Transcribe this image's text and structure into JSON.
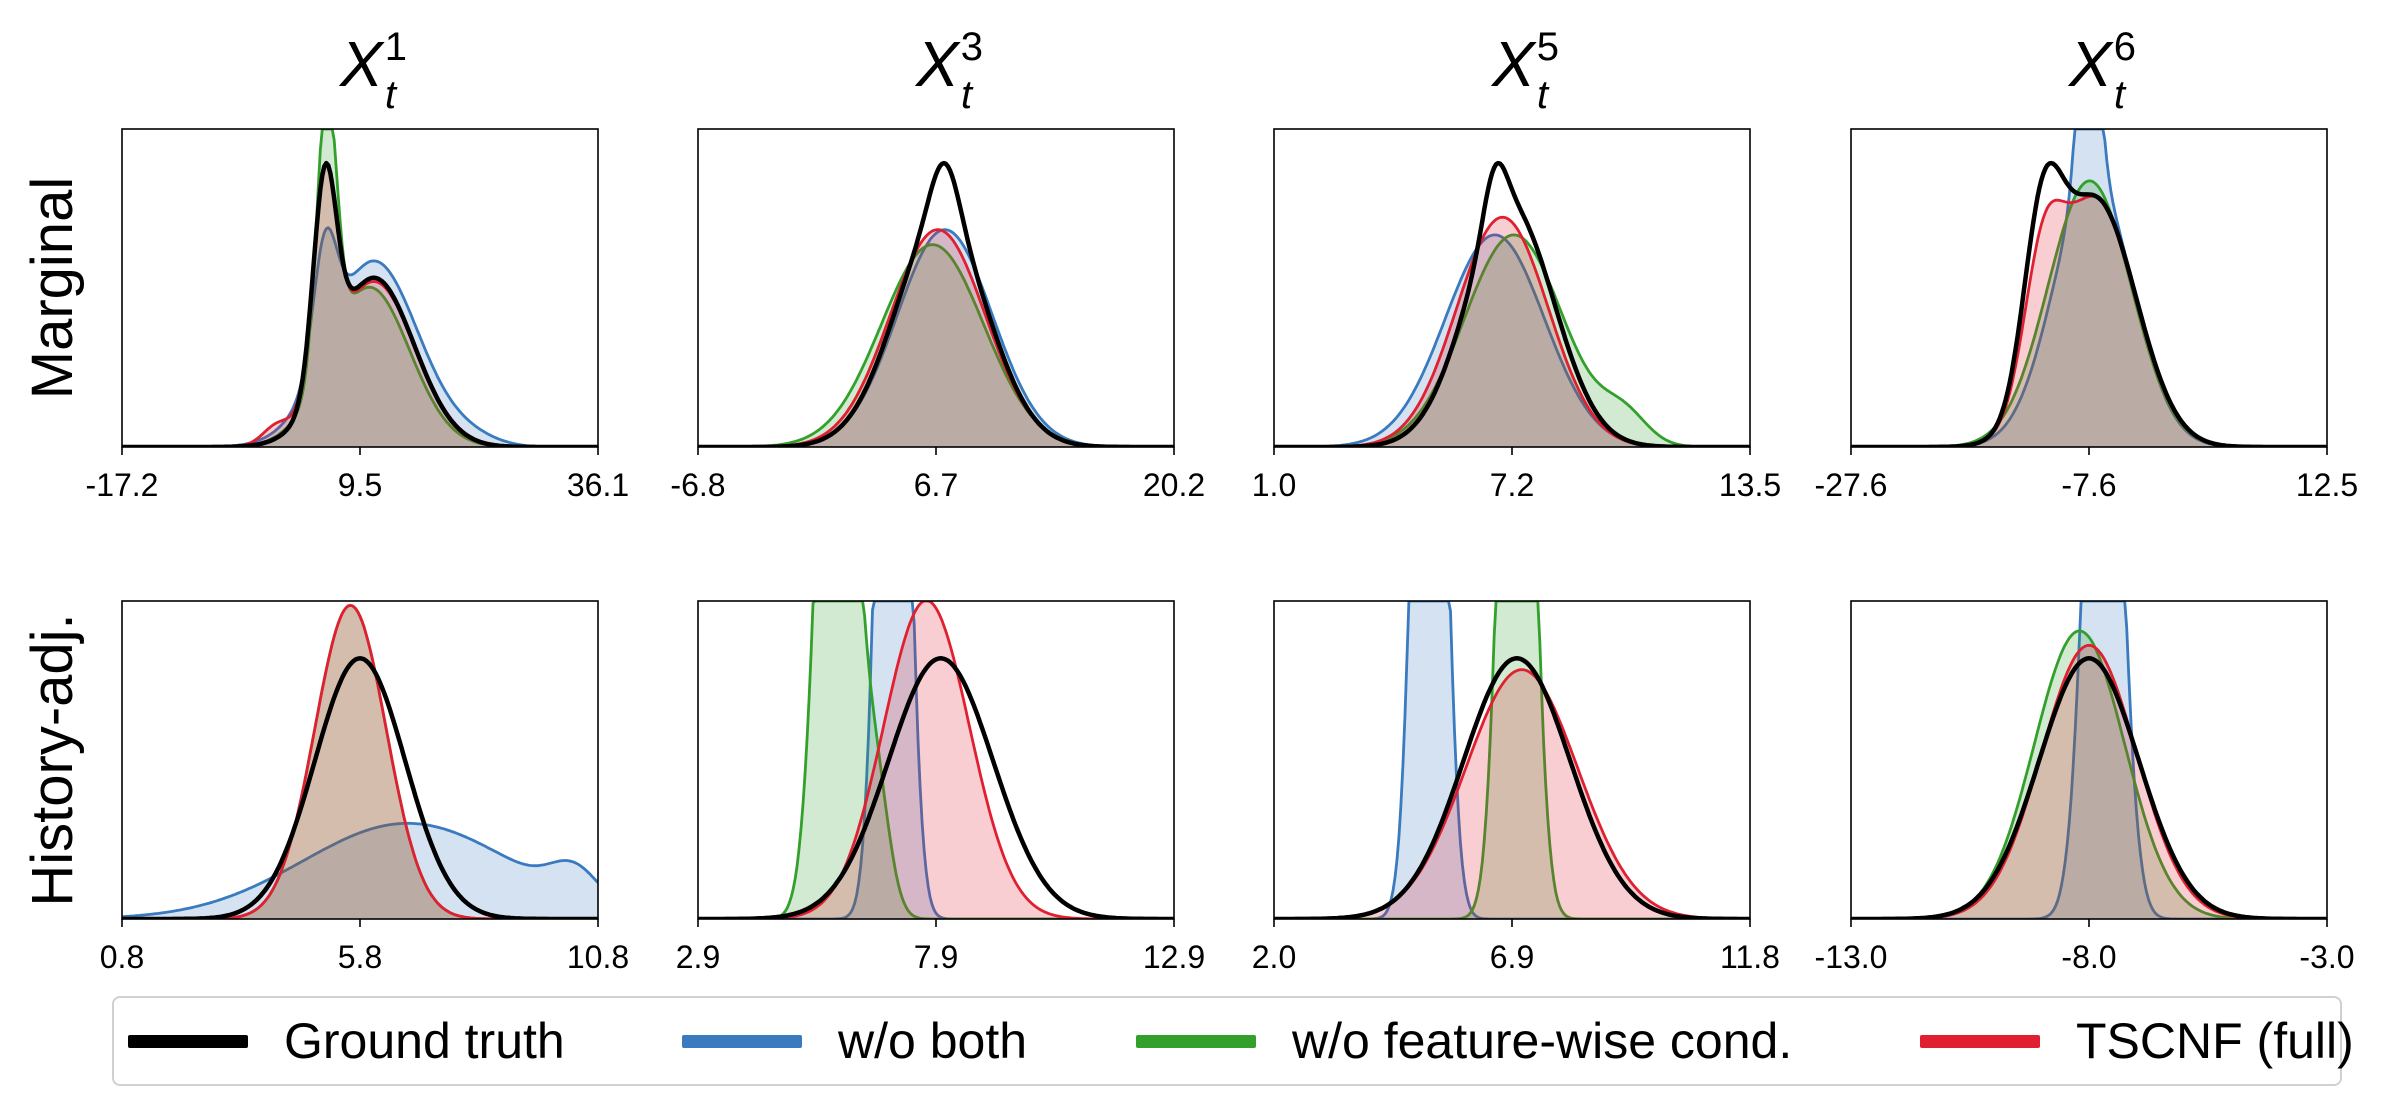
{
  "chart_data": {
    "type": "area",
    "grid": false,
    "legend_placement": "bottom",
    "columns": [
      {
        "var": "X",
        "sup": "1",
        "sub": "t"
      },
      {
        "var": "X",
        "sup": "3",
        "sub": "t"
      },
      {
        "var": "X",
        "sup": "5",
        "sub": "t"
      },
      {
        "var": "X",
        "sup": "6",
        "sub": "t"
      }
    ],
    "rows": [
      "Marginal",
      "History-adj."
    ],
    "series": [
      {
        "key": "gt",
        "name": "Ground truth",
        "color": "#000000",
        "filled": false
      },
      {
        "key": "wob",
        "name": "w/o both",
        "color": "#3a7abf",
        "filled": true
      },
      {
        "key": "wof",
        "name": "w/o feature-wise cond.",
        "color": "#33a02c",
        "filled": true
      },
      {
        "key": "full",
        "name": "TSCNF (full)",
        "color": "#e02030",
        "filled": true
      }
    ],
    "panels": [
      {
        "row": 0,
        "col": 0,
        "xlim": [
          -17.2,
          36.1
        ],
        "xticks": [
          "-17.2",
          "9.5",
          "36.1"
        ],
        "densities": {
          "gt": [
            {
              "m": 5.5,
              "s": 1.3,
              "w": 0.62
            },
            {
              "m": 11,
              "s": 4.5,
              "w": 1.8
            }
          ],
          "wob": [
            {
              "m": 5.5,
              "s": 1.3,
              "w": 0.35
            },
            {
              "m": 11,
              "s": 5,
              "w": 2.2
            },
            {
              "m": 22,
              "s": 3,
              "w": 0.05
            }
          ],
          "wof": [
            {
              "m": 5.7,
              "s": 1.1,
              "w": 0.7
            },
            {
              "m": 10.5,
              "s": 4.5,
              "w": 1.7
            }
          ],
          "full": [
            {
              "m": 5.5,
              "s": 1.3,
              "w": 0.62
            },
            {
              "m": 11,
              "s": 4.6,
              "w": 1.8
            },
            {
              "m": 0,
              "s": 1.5,
              "w": 0.05
            }
          ]
        }
      },
      {
        "row": 0,
        "col": 1,
        "xlim": [
          -6.8,
          20.2
        ],
        "xticks": [
          "-6.8",
          "6.7",
          "20.2"
        ],
        "densities": {
          "gt": [
            {
              "m": 7,
              "s": 2.6,
              "w": 1.0
            },
            {
              "m": 7.2,
              "s": 0.8,
              "w": 0.08
            }
          ],
          "wob": [
            {
              "m": 7.2,
              "s": 2.7,
              "w": 1.0
            }
          ],
          "wof": [
            {
              "m": 6.5,
              "s": 2.9,
              "w": 1.0
            }
          ],
          "full": [
            {
              "m": 6.8,
              "s": 2.7,
              "w": 1.0
            }
          ]
        }
      },
      {
        "row": 0,
        "col": 2,
        "xlim": [
          1.0,
          13.5
        ],
        "xticks": [
          "1.0",
          "7.2",
          "13.5"
        ],
        "densities": {
          "gt": [
            {
              "m": 7.2,
              "s": 1.15,
              "w": 1.0
            },
            {
              "m": 6.8,
              "s": 0.3,
              "w": 0.06
            }
          ],
          "wob": [
            {
              "m": 6.8,
              "s": 1.3,
              "w": 1.0
            }
          ],
          "wof": [
            {
              "m": 7.3,
              "s": 1.3,
              "w": 1.0
            },
            {
              "m": 10.2,
              "s": 0.6,
              "w": 0.06
            }
          ],
          "full": [
            {
              "m": 7.0,
              "s": 1.2,
              "w": 1.0
            }
          ]
        }
      },
      {
        "row": 0,
        "col": 3,
        "xlim": [
          -27.6,
          12.5
        ],
        "xticks": [
          "-27.6",
          "-7.6",
          "12.5"
        ],
        "densities": {
          "gt": [
            {
              "m": -11.5,
              "s": 1.6,
              "w": 0.3
            },
            {
              "m": -7.0,
              "s": 3.4,
              "w": 0.95
            }
          ],
          "wob": [
            {
              "m": -7.2,
              "s": 3.3,
              "w": 1.0
            },
            {
              "m": -7.6,
              "s": 0.8,
              "w": 0.2
            }
          ],
          "wof": [
            {
              "m": -7.5,
              "s": 3.5,
              "w": 1.05
            }
          ],
          "full": [
            {
              "m": -11.5,
              "s": 1.6,
              "w": 0.22
            },
            {
              "m": -7.0,
              "s": 3.4,
              "w": 0.95
            }
          ]
        }
      },
      {
        "row": 1,
        "col": 0,
        "xlim": [
          0.8,
          10.8
        ],
        "xticks": [
          "0.8",
          "5.8",
          "10.8"
        ],
        "densities": {
          "gt": [
            {
              "m": 5.8,
              "s": 0.95,
              "w": 1.0
            }
          ],
          "wob": [
            {
              "m": 6.8,
              "s": 2.2,
              "w": 0.85
            },
            {
              "m": 10.3,
              "s": 0.5,
              "w": 0.06
            }
          ],
          "wof": [
            {
              "m": 5.6,
              "s": 0.75,
              "w": 0.95
            }
          ],
          "full": [
            {
              "m": 5.6,
              "s": 0.75,
              "w": 0.95
            }
          ]
        }
      },
      {
        "row": 1,
        "col": 1,
        "xlim": [
          2.9,
          12.9
        ],
        "xticks": [
          "2.9",
          "7.9",
          "12.9"
        ],
        "densities": {
          "gt": [
            {
              "m": 8.0,
              "s": 1.1,
              "w": 1.0
            }
          ],
          "wob": [
            {
              "m": 7.0,
              "s": 0.28,
              "w": 1.0
            }
          ],
          "wof": [
            {
              "m": 5.8,
              "s": 0.35,
              "w": 1.0
            },
            {
              "m": 6.6,
              "s": 0.3,
              "w": 0.15
            }
          ],
          "full": [
            {
              "m": 7.7,
              "s": 0.9,
              "w": 1.0
            }
          ]
        }
      },
      {
        "row": 1,
        "col": 2,
        "xlim": [
          2.0,
          11.8
        ],
        "xticks": [
          "2.0",
          "6.9",
          "11.8"
        ],
        "densities": {
          "gt": [
            {
              "m": 7.0,
              "s": 1.1,
              "w": 1.0
            }
          ],
          "wob": [
            {
              "m": 5.2,
              "s": 0.28,
              "w": 1.0
            }
          ],
          "wof": [
            {
              "m": 7.0,
              "s": 0.3,
              "w": 1.0
            }
          ],
          "full": [
            {
              "m": 7.1,
              "s": 1.15,
              "w": 1.0
            }
          ]
        }
      },
      {
        "row": 1,
        "col": 3,
        "xlim": [
          -13.0,
          -3.0
        ],
        "xticks": [
          "-13.0",
          "-8.0",
          "-3.0"
        ],
        "densities": {
          "gt": [
            {
              "m": -8.0,
              "s": 1.05,
              "w": 1.0
            }
          ],
          "wob": [
            {
              "m": -7.7,
              "s": 0.35,
              "w": 1.0
            }
          ],
          "wof": [
            {
              "m": -8.2,
              "s": 0.95,
              "w": 1.0
            }
          ],
          "full": [
            {
              "m": -8.0,
              "s": 1.0,
              "w": 1.0
            }
          ]
        }
      }
    ]
  }
}
